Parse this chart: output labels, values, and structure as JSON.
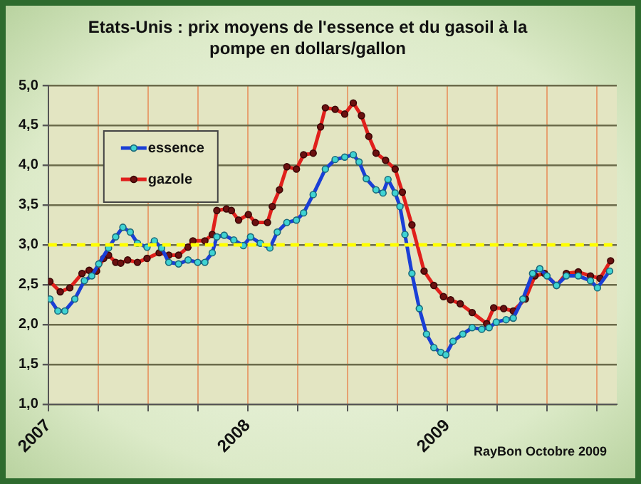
{
  "chart_data": {
    "type": "line",
    "title": "Etats-Unis : prix moyens de l'essence et du gasoil à la pompe en dollars/gallon",
    "annotations": [
      "RayBon Octobre 2009"
    ],
    "xlim": [
      2007,
      2009.85
    ],
    "xticks": [
      2007,
      {
        "value": 2007.25,
        "label": null
      },
      {
        "value": 2007.5,
        "label": null
      },
      {
        "value": 2007.75,
        "label": null
      },
      2008,
      {
        "value": 2008.25,
        "label": null
      },
      {
        "value": 2008.5,
        "label": null
      },
      {
        "value": 2008.75,
        "label": null
      },
      2009,
      {
        "value": 2009.25,
        "label": null
      },
      {
        "value": 2009.5,
        "label": null
      },
      {
        "value": 2009.75,
        "label": null
      }
    ],
    "ylim": [
      1,
      5
    ],
    "yticks": [
      {
        "value": 1,
        "label": "1,0"
      },
      {
        "value": 1.5,
        "label": "1,5"
      },
      {
        "value": 2,
        "label": "2,0"
      },
      {
        "value": 2.5,
        "label": "2,5"
      },
      {
        "value": 3,
        "label": "3,0"
      },
      {
        "value": 3.5,
        "label": "3,5"
      },
      {
        "value": 4,
        "label": "4,0"
      },
      {
        "value": 4.5,
        "label": "4,5"
      },
      {
        "value": 5,
        "label": "5,0"
      }
    ],
    "grid": true,
    "legend": "top left",
    "marker": "circle",
    "line_style": "solid",
    "ref_lines": [
      {
        "axis": "y",
        "value": 3,
        "color": "#ffff00",
        "line_style": "dashed"
      }
    ],
    "series": [
      {
        "name": "essence",
        "color": "#1a3fd6",
        "x": [
          2007.008,
          2007.048,
          2007.083,
          2007.133,
          2007.181,
          2007.218,
          2007.253,
          2007.302,
          2007.338,
          2007.374,
          2007.411,
          2007.447,
          2007.495,
          2007.532,
          2007.568,
          2007.604,
          2007.653,
          2007.701,
          2007.749,
          2007.785,
          2007.822,
          2007.845,
          2007.882,
          2007.93,
          2007.978,
          2008.014,
          2008.063,
          2008.111,
          2008.148,
          2008.196,
          2008.244,
          2008.28,
          2008.328,
          2008.389,
          2008.438,
          2008.486,
          2008.529,
          2008.558,
          2008.594,
          2008.643,
          2008.678,
          2008.703,
          2008.739,
          2008.763,
          2008.788,
          2008.823,
          2008.86,
          2008.896,
          2008.933,
          2008.968,
          2008.993,
          2009.029,
          2009.078,
          2009.125,
          2009.173,
          2009.21,
          2009.246,
          2009.295,
          2009.331,
          2009.379,
          2009.428,
          2009.464,
          2009.5,
          2009.548,
          2009.597,
          2009.657,
          2009.718,
          2009.753,
          2009.814
        ],
        "values": [
          2.32,
          2.17,
          2.17,
          2.32,
          2.55,
          2.61,
          2.76,
          2.96,
          3.1,
          3.22,
          3.16,
          3.02,
          2.97,
          3.05,
          2.96,
          2.78,
          2.76,
          2.81,
          2.78,
          2.78,
          2.9,
          3.1,
          3.12,
          3.06,
          2.99,
          3.1,
          3.02,
          2.96,
          3.16,
          3.28,
          3.31,
          3.4,
          3.63,
          3.95,
          4.07,
          4.1,
          4.13,
          4.04,
          3.83,
          3.69,
          3.65,
          3.82,
          3.65,
          3.48,
          3.13,
          2.64,
          2.2,
          1.88,
          1.71,
          1.65,
          1.62,
          1.79,
          1.88,
          1.96,
          1.94,
          1.96,
          2.03,
          2.06,
          2.08,
          2.32,
          2.64,
          2.7,
          2.61,
          2.49,
          2.61,
          2.61,
          2.55,
          2.46,
          2.67
        ]
      },
      {
        "name": "gazole",
        "color": "#e0201c",
        "x": [
          2007.008,
          2007.06,
          2007.108,
          2007.169,
          2007.205,
          2007.242,
          2007.278,
          2007.302,
          2007.338,
          2007.363,
          2007.398,
          2007.447,
          2007.495,
          2007.556,
          2007.604,
          2007.653,
          2007.7,
          2007.725,
          2007.785,
          2007.822,
          2007.845,
          2007.893,
          2007.918,
          2007.954,
          2008.003,
          2008.038,
          2008.099,
          2008.123,
          2008.159,
          2008.196,
          2008.244,
          2008.28,
          2008.328,
          2008.365,
          2008.389,
          2008.438,
          2008.486,
          2008.529,
          2008.57,
          2008.607,
          2008.643,
          2008.691,
          2008.739,
          2008.775,
          2008.823,
          2008.884,
          2008.933,
          2008.981,
          2009.017,
          2009.065,
          2009.125,
          2009.198,
          2009.233,
          2009.283,
          2009.331,
          2009.392,
          2009.44,
          2009.488,
          2009.548,
          2009.597,
          2009.657,
          2009.718,
          2009.766,
          2009.819
        ],
        "values": [
          2.54,
          2.41,
          2.46,
          2.64,
          2.68,
          2.67,
          2.83,
          2.87,
          2.78,
          2.77,
          2.81,
          2.78,
          2.83,
          2.9,
          2.87,
          2.87,
          2.97,
          3.05,
          3.05,
          3.13,
          3.43,
          3.45,
          3.43,
          3.31,
          3.38,
          3.28,
          3.28,
          3.48,
          3.69,
          3.98,
          3.95,
          4.13,
          4.15,
          4.48,
          4.72,
          4.7,
          4.64,
          4.78,
          4.62,
          4.36,
          4.15,
          4.06,
          3.95,
          3.66,
          3.25,
          2.67,
          2.49,
          2.35,
          2.31,
          2.26,
          2.15,
          2.01,
          2.21,
          2.2,
          2.17,
          2.32,
          2.61,
          2.64,
          2.49,
          2.64,
          2.66,
          2.61,
          2.58,
          2.8
        ]
      }
    ]
  }
}
